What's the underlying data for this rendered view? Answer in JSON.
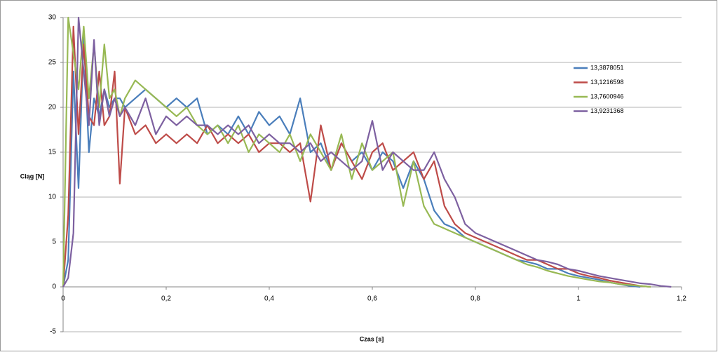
{
  "chart_data": {
    "type": "line",
    "x_label": "Czas [s]",
    "y_label": "Ciąg [N]",
    "x": [
      0,
      0.01,
      0.02,
      0.03,
      0.04,
      0.05,
      0.06,
      0.07,
      0.08,
      0.09,
      0.1,
      0.11,
      0.12,
      0.14,
      0.16,
      0.18,
      0.2,
      0.22,
      0.24,
      0.26,
      0.28,
      0.3,
      0.32,
      0.34,
      0.36,
      0.38,
      0.4,
      0.42,
      0.44,
      0.46,
      0.48,
      0.5,
      0.52,
      0.54,
      0.56,
      0.58,
      0.6,
      0.62,
      0.64,
      0.66,
      0.68,
      0.7,
      0.72,
      0.74,
      0.76,
      0.78,
      0.8,
      0.82,
      0.84,
      0.86,
      0.88,
      0.9,
      0.92,
      0.94,
      0.96,
      0.98,
      1.0,
      1.02,
      1.04,
      1.06,
      1.08,
      1.1,
      1.12,
      1.14,
      1.16,
      1.18
    ],
    "series": [
      {
        "name": "13,3878051",
        "color": "#4a7ebb",
        "values": [
          0,
          3,
          24,
          11,
          28,
          15,
          21,
          19,
          22,
          20,
          21,
          21,
          20,
          21,
          22,
          21,
          20,
          21,
          20,
          21,
          17,
          18,
          17,
          19,
          17,
          19.5,
          18,
          19,
          17,
          21,
          15,
          16,
          13,
          16,
          14,
          15,
          13,
          15,
          14,
          11,
          14,
          12,
          8.5,
          7,
          6.5,
          5.5,
          5,
          4.5,
          4,
          3.5,
          3,
          2.8,
          2.5,
          2,
          2,
          1.5,
          1.2,
          1,
          0.8,
          0.5,
          0.3,
          0.1,
          0,
          null,
          null,
          null
        ]
      },
      {
        "name": "13,1216598",
        "color": "#be4b48",
        "values": [
          0,
          8,
          29,
          17,
          27,
          19,
          18,
          24,
          18,
          19,
          24,
          11.5,
          20,
          17,
          18,
          16,
          17,
          16,
          17,
          16,
          18,
          16,
          17,
          16,
          17,
          15,
          16,
          16,
          15,
          16,
          9.5,
          18,
          13,
          16,
          14,
          12,
          15,
          16,
          13,
          14,
          15,
          12,
          14,
          9,
          7,
          6,
          5.5,
          5,
          4.5,
          4,
          3.5,
          3,
          3,
          2.5,
          2,
          2,
          1.5,
          1.2,
          1,
          0.7,
          0.5,
          0.3,
          0.1,
          0,
          null,
          null
        ]
      },
      {
        "name": "13,7600946",
        "color": "#98b954",
        "values": [
          0,
          30,
          26,
          22,
          29,
          21,
          27,
          20,
          27,
          21,
          22,
          19,
          21,
          23,
          22,
          21,
          20,
          19,
          20,
          18,
          17,
          18,
          16,
          18,
          15,
          17,
          16,
          15,
          17,
          14,
          17,
          15,
          13,
          17,
          12,
          16,
          13,
          14,
          15,
          9,
          14,
          9,
          7,
          6.5,
          6,
          5.5,
          5,
          4.5,
          4,
          3.5,
          3,
          2.5,
          2.2,
          1.8,
          1.5,
          1.2,
          1,
          0.8,
          0.6,
          0.5,
          0.3,
          0.2,
          0.1,
          0,
          null,
          null
        ]
      },
      {
        "name": "13,9231368",
        "color": "#7d60a0",
        "values": [
          0,
          1,
          6,
          30,
          24,
          18,
          27.5,
          18,
          22,
          19,
          21,
          19,
          20,
          18,
          21,
          17,
          19,
          18,
          19,
          18,
          18,
          17,
          18,
          17,
          18,
          16,
          17,
          16,
          16,
          15,
          16,
          14,
          15,
          14,
          13,
          14,
          18.5,
          13,
          15,
          14,
          13,
          13,
          15,
          12,
          10,
          7,
          6,
          5.5,
          5,
          4.5,
          4,
          3.5,
          3,
          2.8,
          2.5,
          2,
          1.8,
          1.5,
          1.2,
          1,
          0.8,
          0.6,
          0.4,
          0.3,
          0.1,
          0
        ]
      }
    ],
    "xlim": [
      0,
      1.2
    ],
    "xticks": [
      0,
      {
        "value": 0.2,
        "label": "0,2"
      },
      {
        "value": 0.4,
        "label": "0,4"
      },
      {
        "value": 0.6,
        "label": "0,6"
      },
      {
        "value": 0.8,
        "label": "0,8"
      },
      1,
      {
        "value": 1.2,
        "label": "1,2"
      }
    ],
    "ylim": [
      -5,
      30
    ],
    "yticks": [
      -5,
      0,
      5,
      10,
      15,
      20,
      25,
      30
    ],
    "grid": true,
    "legend": "right"
  }
}
